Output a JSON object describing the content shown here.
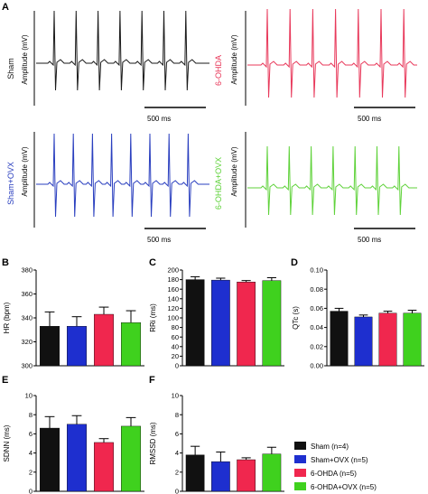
{
  "panel_letters": {
    "A": "A",
    "B": "B",
    "C": "C",
    "D": "D",
    "E": "E",
    "F": "F"
  },
  "ecg": {
    "amplitude_label": "Amplitude (mV)",
    "scale_bar_label": "500 ms",
    "traces": [
      {
        "group": "Sham",
        "color": "#1a1a1a"
      },
      {
        "group": "6-OHDA",
        "color": "#e8385a"
      },
      {
        "group": "Sham+OVX",
        "color": "#2a3fbf"
      },
      {
        "group": "6-OHDA+OVX",
        "color": "#5fd23a"
      }
    ]
  },
  "legend": [
    {
      "label": "Sham (n=4)",
      "color": "#111111"
    },
    {
      "label": "Sham+OVX (n=5)",
      "color": "#1e2fcf"
    },
    {
      "label": "6-OHDA (n=5)",
      "color": "#f0274e"
    },
    {
      "label": "6-OHDA+OVX (n=5)",
      "color": "#3fd11e"
    }
  ],
  "chart_data": [
    {
      "panel": "B",
      "type": "bar",
      "ylabel": "HR (bpm)",
      "ylim": [
        300,
        380
      ],
      "yticks": [
        "300",
        "320",
        "340",
        "360",
        "380"
      ],
      "categories": [
        "Sham (n=4)",
        "Sham+OVX (n=5)",
        "6-OHDA (n=5)",
        "6-OHDA+OVX (n=5)"
      ],
      "values": [
        333,
        333,
        343,
        336
      ],
      "errors": [
        12,
        8,
        6,
        10
      ]
    },
    {
      "panel": "C",
      "type": "bar",
      "ylabel": "RRi (ms)",
      "ylim": [
        0,
        200
      ],
      "yticks": [
        "0",
        "20",
        "40",
        "60",
        "80",
        "100",
        "120",
        "140",
        "160",
        "180",
        "200"
      ],
      "categories": [
        "Sham (n=4)",
        "Sham+OVX (n=5)",
        "6-OHDA (n=5)",
        "6-OHDA+OVX (n=5)"
      ],
      "values": [
        180,
        179,
        175,
        178
      ],
      "errors": [
        6,
        4,
        3,
        6
      ]
    },
    {
      "panel": "D",
      "type": "bar",
      "ylabel": "QTc (s)",
      "ylim": [
        0,
        0.1
      ],
      "yticks": [
        "0.00",
        "0.02",
        "0.04",
        "0.06",
        "0.08",
        "0.10"
      ],
      "categories": [
        "Sham (n=4)",
        "Sham+OVX (n=5)",
        "6-OHDA (n=5)",
        "6-OHDA+OVX (n=5)"
      ],
      "values": [
        0.057,
        0.051,
        0.055,
        0.055
      ],
      "errors": [
        0.003,
        0.002,
        0.002,
        0.003
      ]
    },
    {
      "panel": "E",
      "type": "bar",
      "ylabel": "SDNN (ms)",
      "ylim": [
        0,
        10
      ],
      "yticks": [
        "0",
        "2",
        "4",
        "6",
        "8",
        "10"
      ],
      "categories": [
        "Sham (n=4)",
        "Sham+OVX (n=5)",
        "6-OHDA (n=5)",
        "6-OHDA+OVX (n=5)"
      ],
      "values": [
        6.6,
        7.0,
        5.1,
        6.8
      ],
      "errors": [
        1.2,
        0.9,
        0.4,
        0.9
      ]
    },
    {
      "panel": "F",
      "type": "bar",
      "ylabel": "RMSSD (ms)",
      "ylim": [
        0,
        10
      ],
      "yticks": [
        "0",
        "2",
        "4",
        "6",
        "8",
        "10"
      ],
      "categories": [
        "Sham (n=4)",
        "Sham+OVX (n=5)",
        "6-OHDA (n=5)",
        "6-OHDA+OVX (n=5)"
      ],
      "values": [
        3.8,
        3.1,
        3.3,
        3.9
      ],
      "errors": [
        0.9,
        1.0,
        0.2,
        0.7
      ]
    }
  ]
}
